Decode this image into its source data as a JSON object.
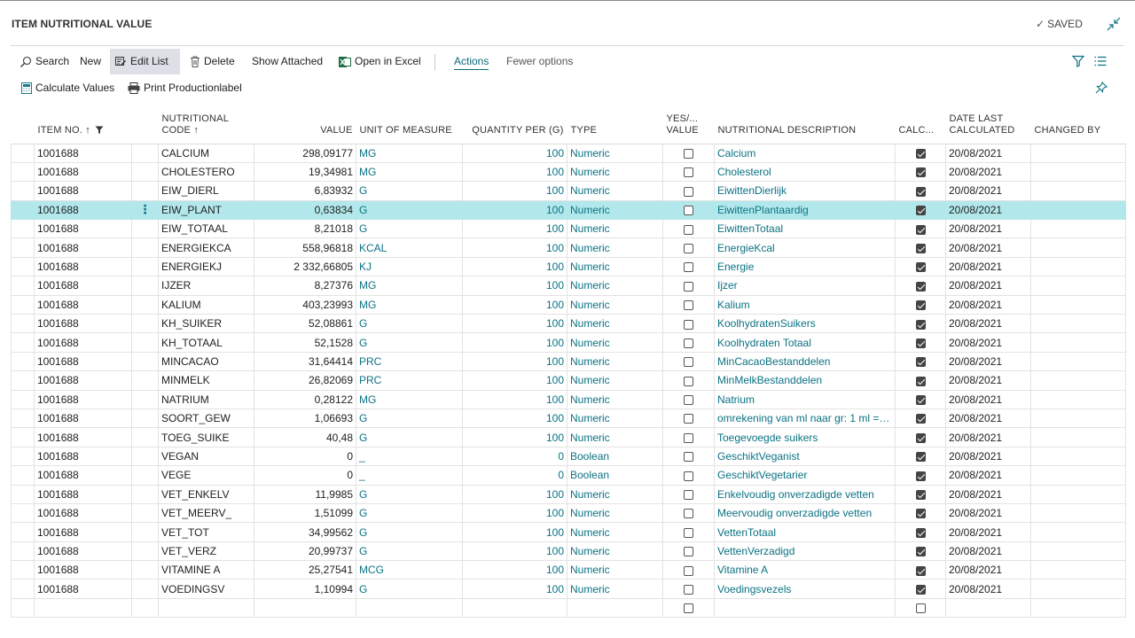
{
  "header": {
    "title": "ITEM NUTRITIONAL VALUE",
    "saved_label": "SAVED",
    "collapse_icon": "collapse-icon"
  },
  "toolbar": {
    "search": "Search",
    "new": "New",
    "edit_list": "Edit List",
    "delete": "Delete",
    "show_attached": "Show Attached",
    "open_in_excel": "Open in Excel",
    "actions": "Actions",
    "fewer_options": "Fewer options"
  },
  "toolbar2": {
    "calculate_values": "Calculate Values",
    "print_productionlabel": "Print Productionlabel"
  },
  "columns": {
    "item_no": "ITEM NO. ↑",
    "nutritional_code_1": "NUTRITIONAL",
    "nutritional_code_2": "CODE ↑",
    "value": "VALUE",
    "unit_of_measure": "UNIT OF MEASURE",
    "quantity_per": "QUANTITY PER (G)",
    "type": "TYPE",
    "yes_no_1": "YES/...",
    "yes_no_2": "VALUE",
    "nutritional_description": "NUTRITIONAL DESCRIPTION",
    "calc": "CALC...",
    "date_last_1": "DATE LAST",
    "date_last_2": "CALCULATED",
    "changed_by": "CHANGED BY"
  },
  "rows": [
    {
      "item": "1001688",
      "code": "CALCIUM",
      "value": "298,09177",
      "uom": "MG",
      "qty": "100",
      "type": "Numeric",
      "yn": false,
      "desc": "Calcium",
      "calc": true,
      "date": "20/08/2021"
    },
    {
      "item": "1001688",
      "code": "CHOLESTERO",
      "value": "19,34981",
      "uom": "MG",
      "qty": "100",
      "type": "Numeric",
      "yn": false,
      "desc": "Cholesterol",
      "calc": true,
      "date": "20/08/2021"
    },
    {
      "item": "1001688",
      "code": "EIW_DIERL",
      "value": "6,83932",
      "uom": "G",
      "qty": "100",
      "type": "Numeric",
      "yn": false,
      "desc": "EiwittenDierlijk",
      "calc": true,
      "date": "20/08/2021"
    },
    {
      "item": "1001688",
      "code": "EIW_PLANT",
      "value": "0,63834",
      "uom": "G",
      "qty": "100",
      "type": "Numeric",
      "yn": false,
      "desc": "EiwittenPlantaardig",
      "calc": true,
      "date": "20/08/2021",
      "selected": true
    },
    {
      "item": "1001688",
      "code": "EIW_TOTAAL",
      "value": "8,21018",
      "uom": "G",
      "qty": "100",
      "type": "Numeric",
      "yn": false,
      "desc": "EiwittenTotaal",
      "calc": true,
      "date": "20/08/2021"
    },
    {
      "item": "1001688",
      "code": "ENERGIEKCA",
      "value": "558,96818",
      "uom": "KCAL",
      "qty": "100",
      "type": "Numeric",
      "yn": false,
      "desc": "EnergieKcal",
      "calc": true,
      "date": "20/08/2021"
    },
    {
      "item": "1001688",
      "code": "ENERGIEKJ",
      "value": "2 332,66805",
      "uom": "KJ",
      "qty": "100",
      "type": "Numeric",
      "yn": false,
      "desc": "Energie",
      "calc": true,
      "date": "20/08/2021"
    },
    {
      "item": "1001688",
      "code": "IJZER",
      "value": "8,27376",
      "uom": "MG",
      "qty": "100",
      "type": "Numeric",
      "yn": false,
      "desc": "Ijzer",
      "calc": true,
      "date": "20/08/2021"
    },
    {
      "item": "1001688",
      "code": "KALIUM",
      "value": "403,23993",
      "uom": "MG",
      "qty": "100",
      "type": "Numeric",
      "yn": false,
      "desc": "Kalium",
      "calc": true,
      "date": "20/08/2021"
    },
    {
      "item": "1001688",
      "code": "KH_SUIKER",
      "value": "52,08861",
      "uom": "G",
      "qty": "100",
      "type": "Numeric",
      "yn": false,
      "desc": "KoolhydratenSuikers",
      "calc": true,
      "date": "20/08/2021"
    },
    {
      "item": "1001688",
      "code": "KH_TOTAAL",
      "value": "52,1528",
      "uom": "G",
      "qty": "100",
      "type": "Numeric",
      "yn": false,
      "desc": "Koolhydraten Totaal",
      "calc": true,
      "date": "20/08/2021"
    },
    {
      "item": "1001688",
      "code": "MINCACAO",
      "value": "31,64414",
      "uom": "PRC",
      "qty": "100",
      "type": "Numeric",
      "yn": false,
      "desc": "MinCacaoBestanddelen",
      "calc": true,
      "date": "20/08/2021"
    },
    {
      "item": "1001688",
      "code": "MINMELK",
      "value": "26,82069",
      "uom": "PRC",
      "qty": "100",
      "type": "Numeric",
      "yn": false,
      "desc": "MinMelkBestanddelen",
      "calc": true,
      "date": "20/08/2021"
    },
    {
      "item": "1001688",
      "code": "NATRIUM",
      "value": "0,28122",
      "uom": "MG",
      "qty": "100",
      "type": "Numeric",
      "yn": false,
      "desc": "Natrium",
      "calc": true,
      "date": "20/08/2021"
    },
    {
      "item": "1001688",
      "code": "SOORT_GEW",
      "value": "1,06693",
      "uom": "G",
      "qty": "100",
      "type": "Numeric",
      "yn": false,
      "desc": "omrekening van ml naar gr: 1 ml = 1,...",
      "calc": true,
      "date": "20/08/2021"
    },
    {
      "item": "1001688",
      "code": "TOEG_SUIKE",
      "value": "40,48",
      "uom": "G",
      "qty": "100",
      "type": "Numeric",
      "yn": false,
      "desc": "Toegevoegde suikers",
      "calc": true,
      "date": "20/08/2021"
    },
    {
      "item": "1001688",
      "code": "VEGAN",
      "value": "0",
      "uom": "_",
      "qty": "0",
      "type": "Boolean",
      "yn": false,
      "desc": "GeschiktVeganist",
      "calc": true,
      "date": "20/08/2021"
    },
    {
      "item": "1001688",
      "code": "VEGE",
      "value": "0",
      "uom": "_",
      "qty": "0",
      "type": "Boolean",
      "yn": false,
      "desc": "GeschiktVegetarier",
      "calc": true,
      "date": "20/08/2021"
    },
    {
      "item": "1001688",
      "code": "VET_ENKELV",
      "value": "11,9985",
      "uom": "G",
      "qty": "100",
      "type": "Numeric",
      "yn": false,
      "desc": "Enkelvoudig onverzadigde vetten",
      "calc": true,
      "date": "20/08/2021"
    },
    {
      "item": "1001688",
      "code": "VET_MEERV_",
      "value": "1,51099",
      "uom": "G",
      "qty": "100",
      "type": "Numeric",
      "yn": false,
      "desc": "Meervoudig onverzadigde vetten",
      "calc": true,
      "date": "20/08/2021"
    },
    {
      "item": "1001688",
      "code": "VET_TOT",
      "value": "34,99562",
      "uom": "G",
      "qty": "100",
      "type": "Numeric",
      "yn": false,
      "desc": "VettenTotaal",
      "calc": true,
      "date": "20/08/2021"
    },
    {
      "item": "1001688",
      "code": "VET_VERZ",
      "value": "20,99737",
      "uom": "G",
      "qty": "100",
      "type": "Numeric",
      "yn": false,
      "desc": "VettenVerzadigd",
      "calc": true,
      "date": "20/08/2021"
    },
    {
      "item": "1001688",
      "code": "VITAMINE A",
      "value": "25,27541",
      "uom": "MCG",
      "qty": "100",
      "type": "Numeric",
      "yn": false,
      "desc": "Vitamine A",
      "calc": true,
      "date": "20/08/2021"
    },
    {
      "item": "1001688",
      "code": "VOEDINGSV",
      "value": "1,10994",
      "uom": "G",
      "qty": "100",
      "type": "Numeric",
      "yn": false,
      "desc": "Voedingsvezels",
      "calc": true,
      "date": "20/08/2021"
    }
  ],
  "row_menu_icon": "⋮",
  "colors": {
    "accent": "#0b7283",
    "selected_row": "#b2e8ec"
  }
}
